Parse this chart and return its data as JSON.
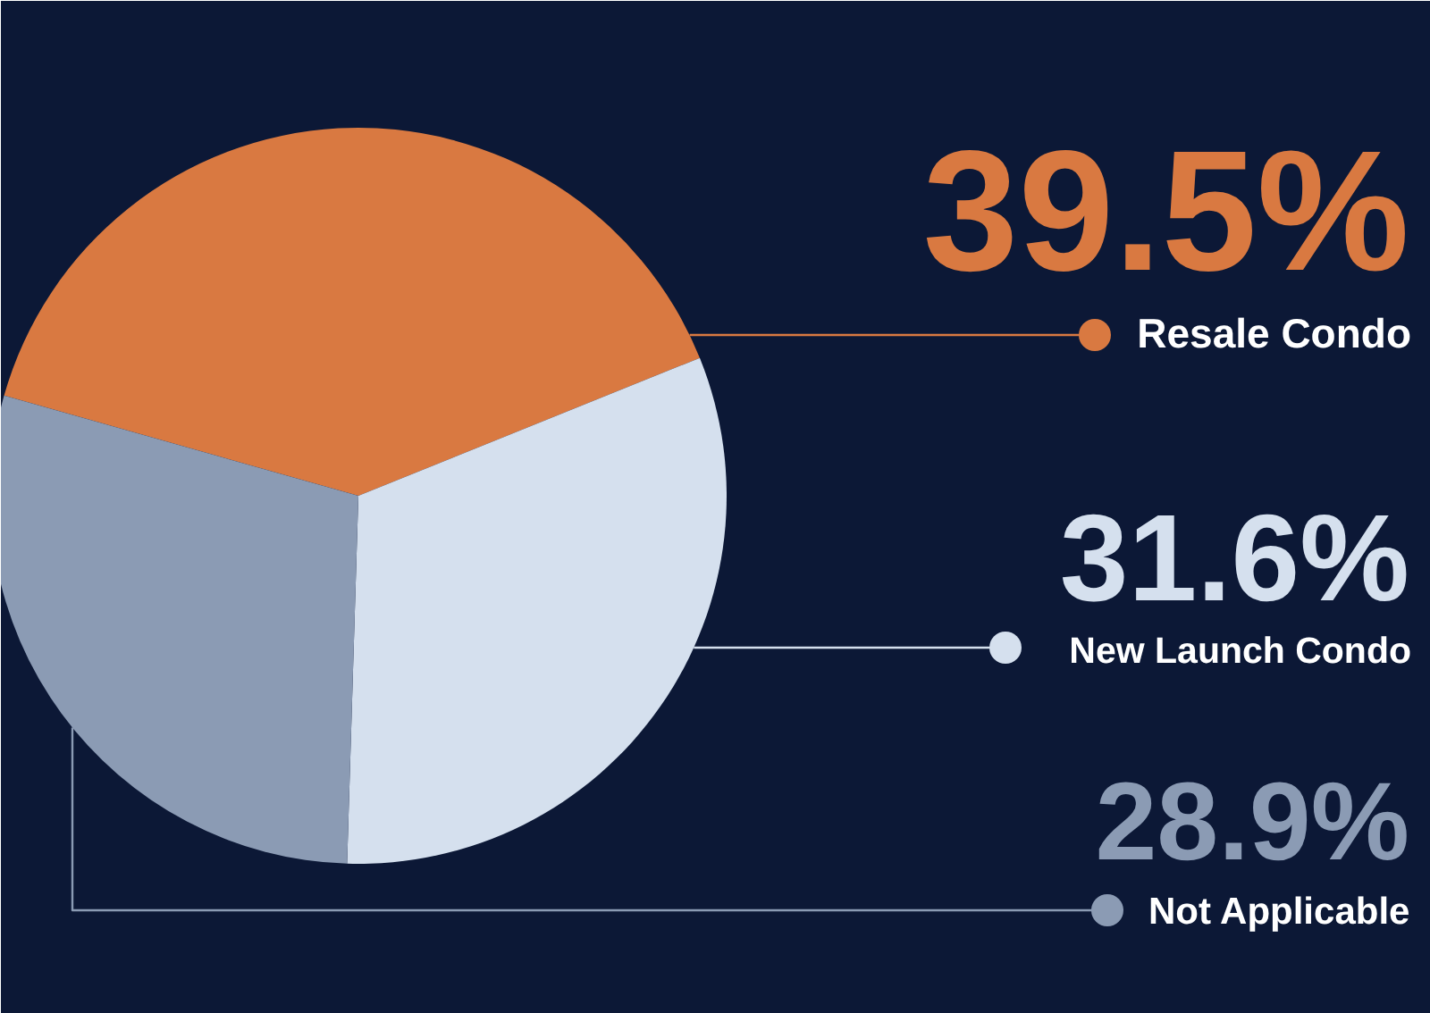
{
  "chart_data": {
    "type": "pie",
    "categories": [
      "Resale Condo",
      "New Launch Condo",
      "Not Applicable"
    ],
    "values": [
      39.5,
      31.6,
      28.9
    ],
    "colors": [
      "#d97941",
      "#d5e0ee",
      "#8b9bb4"
    ],
    "value_labels": [
      "39.5%",
      "31.6%",
      "28.9%"
    ],
    "legend": "right"
  }
}
